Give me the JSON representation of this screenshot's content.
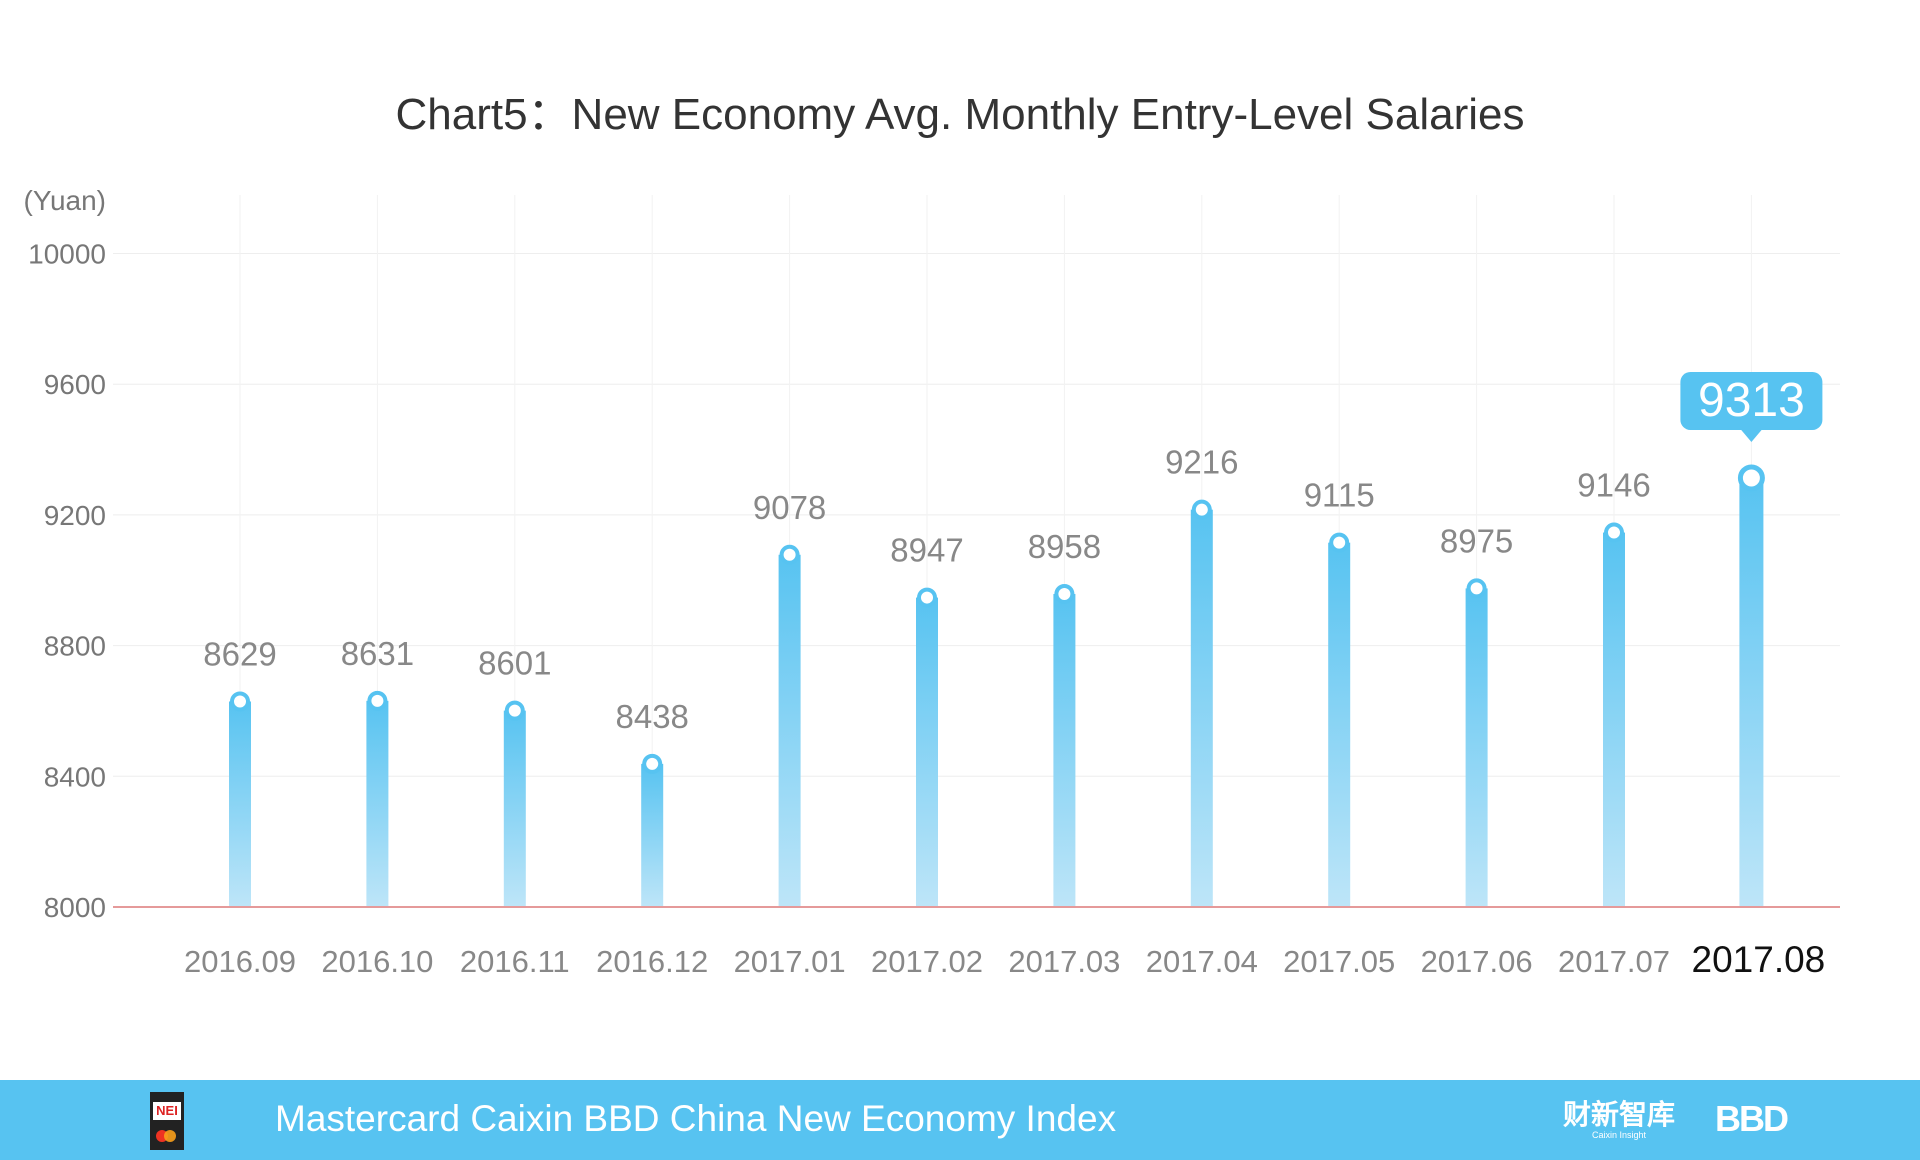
{
  "chart_data": {
    "type": "bar",
    "title": "Chart5：New Economy Avg. Monthly Entry-Level Salaries",
    "ylabel": "(Yuan)",
    "ylim": [
      8000,
      10000
    ],
    "yticks": [
      8000,
      8400,
      8800,
      9200,
      9600,
      10000
    ],
    "grid": true,
    "categories": [
      "2016.09",
      "2016.10",
      "2016.11",
      "2016.12",
      "2017.01",
      "2017.02",
      "2017.03",
      "2017.04",
      "2017.05",
      "2017.06",
      "2017.07",
      "2017.08"
    ],
    "values": [
      8629,
      8631,
      8601,
      8438,
      9078,
      8947,
      8958,
      9216,
      9115,
      8975,
      9146,
      9313
    ],
    "highlight_index": 11,
    "colors": {
      "bar_top": "#57c3f1",
      "bar_bottom": "#bde5f8",
      "baseline": "#e59a9a",
      "highlight_label_bg": "#57c3f1"
    }
  },
  "footer": {
    "text": "Mastercard Caixin BBD China New Economy Index",
    "logo_nei": "NEI",
    "logo_caixin_cn": "财新智库",
    "logo_caixin_en": "Caixin Insight",
    "logo_bbd": "BBD",
    "background": "#57c3f1"
  }
}
